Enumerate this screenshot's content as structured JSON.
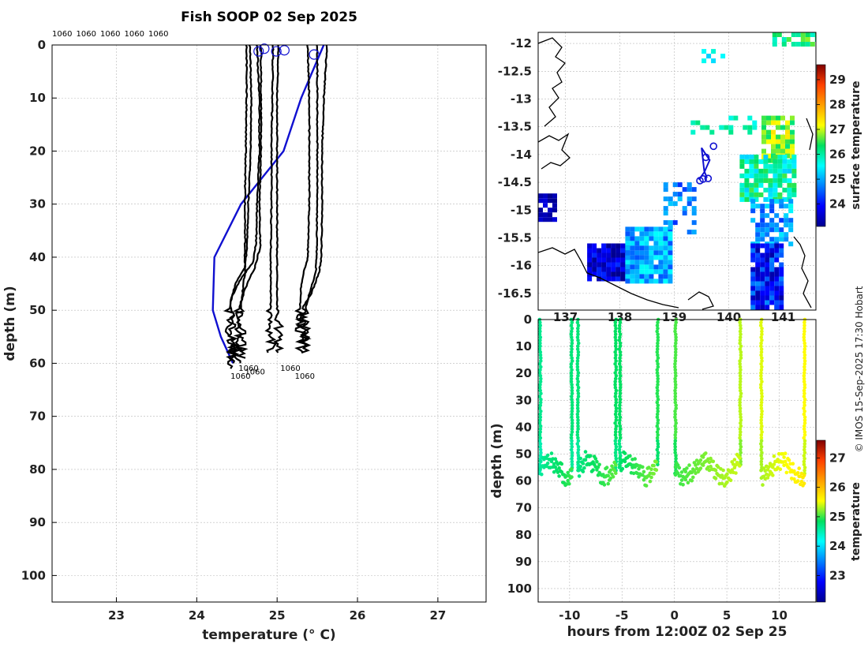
{
  "figure": {
    "title": "Fish SOOP 02 Sep 2025",
    "credit": "© IMOS 15-Sep-2025 17:30 Hobart",
    "colors": {
      "profile": "#000000",
      "climatology": "#1010d0",
      "grid": "#b8b8b8",
      "land": "#000000"
    }
  },
  "chart_data": [
    {
      "id": "profiles",
      "type": "line",
      "title": "Fish SOOP 02 Sep 2025",
      "xlabel": "temperature (° C)",
      "ylabel": "depth (m)",
      "xlim": [
        22.2,
        27.6
      ],
      "ylim": [
        105,
        0
      ],
      "xticks": [
        23,
        24,
        25,
        26,
        27
      ],
      "yticks": [
        0,
        10,
        20,
        30,
        40,
        50,
        60,
        70,
        80,
        90,
        100
      ],
      "top_labels": [
        "1060",
        "1060",
        "1060",
        "1060",
        "1060"
      ],
      "end_labels": [
        {
          "text": "1060",
          "x": 24.6,
          "y": 61.5
        },
        {
          "text": "1060",
          "x": 24.52,
          "y": 60.8
        },
        {
          "text": "1060",
          "x": 24.42,
          "y": 62.3
        },
        {
          "text": "1060",
          "x": 25.04,
          "y": 60.8
        },
        {
          "text": "1060",
          "x": 25.22,
          "y": 62.3
        }
      ],
      "markers": [
        {
          "x": 24.77,
          "y": 1.2
        },
        {
          "x": 24.84,
          "y": 0.7
        },
        {
          "x": 24.99,
          "y": 1.2
        },
        {
          "x": 25.09,
          "y": 1.0
        },
        {
          "x": 25.46,
          "y": 1.8
        }
      ],
      "series": [
        {
          "name": "climatology",
          "x": [
            25.58,
            25.3,
            25.08,
            24.55,
            24.22,
            24.2,
            24.3,
            24.45
          ],
          "y": [
            0,
            10,
            20,
            30,
            40,
            50,
            55,
            60
          ]
        },
        {
          "name": "profile-1",
          "x": [
            24.62,
            24.62,
            24.61,
            24.6,
            24.6,
            24.6,
            24.58,
            24.55,
            24.55
          ],
          "y": [
            0,
            10,
            20,
            30,
            38,
            43,
            45,
            50,
            59
          ]
        },
        {
          "name": "profile-2",
          "x": [
            24.66,
            24.68,
            24.67,
            24.64,
            24.63,
            24.6,
            24.48,
            24.4,
            24.45
          ],
          "y": [
            0,
            10,
            20,
            30,
            37,
            42,
            45,
            50,
            61
          ]
        },
        {
          "name": "profile-3",
          "x": [
            24.75,
            24.78,
            24.78,
            24.75,
            24.74,
            24.7,
            24.55,
            24.42,
            24.45
          ],
          "y": [
            0,
            10,
            20,
            30,
            37,
            41,
            44,
            48,
            60
          ]
        },
        {
          "name": "profile-4",
          "x": [
            24.8,
            24.8,
            24.8,
            24.78,
            24.79,
            24.72,
            24.6,
            24.52,
            24.5
          ],
          "y": [
            0,
            10,
            20,
            30,
            38,
            42,
            46,
            50,
            60
          ]
        },
        {
          "name": "profile-5",
          "x": [
            24.95,
            24.94,
            24.93,
            24.93,
            24.92,
            24.92,
            24.93
          ],
          "y": [
            0,
            10,
            20,
            30,
            40,
            50,
            58
          ]
        },
        {
          "name": "profile-6",
          "x": [
            25.02,
            25.0,
            25.0,
            25.0,
            25.0,
            25.0,
            25.02
          ],
          "y": [
            0,
            10,
            20,
            30,
            40,
            50,
            58
          ]
        },
        {
          "name": "profile-7",
          "x": [
            25.38,
            25.4,
            25.4,
            25.4,
            25.38,
            25.3,
            25.28,
            25.3
          ],
          "y": [
            0,
            10,
            20,
            30,
            40,
            45,
            50,
            58
          ]
        },
        {
          "name": "profile-8",
          "x": [
            25.5,
            25.5,
            25.5,
            25.5,
            25.49,
            25.48,
            25.4,
            25.35,
            25.36
          ],
          "y": [
            0,
            10,
            20,
            30,
            40,
            43,
            47,
            50,
            58
          ]
        },
        {
          "name": "profile-9",
          "x": [
            25.62,
            25.58,
            25.56,
            25.56,
            25.55,
            25.52,
            25.42,
            25.3,
            25.35
          ],
          "y": [
            0,
            10,
            20,
            30,
            40,
            43,
            47,
            50,
            57
          ]
        }
      ]
    },
    {
      "id": "map",
      "type": "heatmap",
      "colorbar_label": "surface temperature",
      "lon_range": [
        136.5,
        141.6
      ],
      "lat_range": [
        -16.8,
        -11.8
      ],
      "xticks": [
        137,
        138,
        139,
        140,
        141
      ],
      "yticks": [
        -12,
        -12.5,
        -13,
        -13.5,
        -14,
        -14.5,
        -15,
        -15.5,
        -16,
        -16.5
      ],
      "colorbar_range": [
        23.1,
        29.6
      ],
      "colorbar_ticks": [
        24,
        25,
        26,
        27,
        28,
        29
      ],
      "track": {
        "lon": [
          139.45,
          139.55,
          139.65,
          139.58,
          139.5,
          139.55,
          139.6
        ],
        "lat": [
          -14.45,
          -14.32,
          -14.1,
          -14.0,
          -13.88,
          -14.3,
          -14.42
        ]
      },
      "track_markers": [
        {
          "lon": 139.47,
          "lat": -14.47
        },
        {
          "lon": 139.53,
          "lat": -14.44
        },
        {
          "lon": 139.62,
          "lat": -14.43
        },
        {
          "lon": 139.58,
          "lat": -14.05
        },
        {
          "lon": 139.72,
          "lat": -13.85
        }
      ]
    },
    {
      "id": "section",
      "type": "scatter",
      "xlabel": "hours from 12:00Z 02 Sep 25",
      "ylabel": "depth (m)",
      "colorbar_label": "temperature",
      "xlim": [
        -13,
        13.5
      ],
      "ylim": [
        105,
        0
      ],
      "xticks": [
        -10,
        -5,
        0,
        5,
        10
      ],
      "yticks": [
        0,
        10,
        20,
        30,
        40,
        50,
        60,
        70,
        80,
        90,
        100
      ],
      "colorbar_range": [
        22.1,
        27.6
      ],
      "colorbar_ticks": [
        23,
        24,
        25,
        26,
        27
      ]
    }
  ]
}
